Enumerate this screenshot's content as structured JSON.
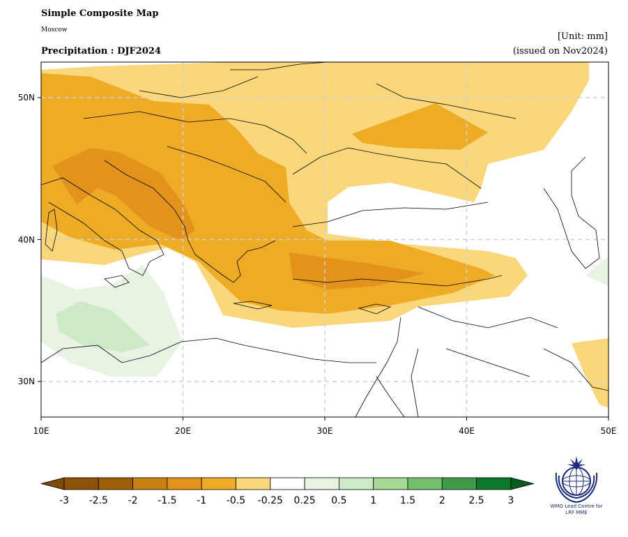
{
  "header": {
    "title": "Simple Composite Map",
    "subtitle": "Moscow",
    "variable": "Precipitation : DJF2024",
    "unit": "[Unit: mm]",
    "issued": "(issued on Nov2024)"
  },
  "map": {
    "lon_range": [
      10,
      50
    ],
    "lat_range": [
      27.5,
      52.5
    ],
    "x_ticks": [
      "10E",
      "20E",
      "30E",
      "40E",
      "50E"
    ],
    "y_ticks": [
      "30N",
      "40N",
      "50N"
    ],
    "grid": true
  },
  "colorbar": {
    "labels": [
      "-3",
      "-2.5",
      "-2",
      "-1.5",
      "-1",
      "-0.5",
      "-0.25",
      "0.25",
      "0.5",
      "1",
      "1.5",
      "2",
      "2.5",
      "3"
    ],
    "colors": [
      "#7a4a06",
      "#8b5208",
      "#9d5e08",
      "#c97e10",
      "#e3921c",
      "#eeab26",
      "#f9d77a",
      "#ffffff",
      "#e9f3e4",
      "#cdeac6",
      "#a6d996",
      "#74bf6c",
      "#3f9a4a",
      "#0a7a2a",
      "#0b5a1f"
    ]
  },
  "logo": {
    "line1": "WMO Lead Centre for",
    "line2": "LRF MME"
  }
}
